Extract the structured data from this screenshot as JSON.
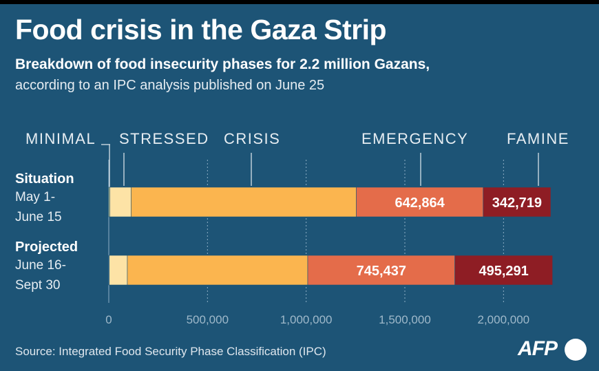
{
  "title": "Food crisis in the Gaza Strip",
  "subtitle_bold": "Breakdown of food insecurity phases for 2.2 million Gazans,",
  "subtitle_regular": "according to an IPC analysis published on June 25",
  "source": "Source: Integrated Food Security Phase Classification (IPC)",
  "logo_text": "AFP",
  "colors": {
    "background": "#1d5476",
    "minimal": "#e8d98a",
    "stressed": "#fde3a6",
    "crisis": "#fbb54f",
    "emergency": "#e46c4a",
    "famine": "#8e1d24"
  },
  "chart_data": {
    "type": "bar",
    "orientation": "horizontal",
    "stacked": true,
    "categories": [
      {
        "name": "Situation",
        "period_line1": "May 1-",
        "period_line2": "June 15"
      },
      {
        "name": "Projected",
        "period_line1": "June 16-",
        "period_line2": "Sept 30"
      }
    ],
    "series": [
      {
        "name": "MINIMAL",
        "values": [
          5000,
          2000
        ]
      },
      {
        "name": "STRESSED",
        "values": [
          108000,
          92000
        ]
      },
      {
        "name": "CRISIS",
        "values": [
          1141000,
          914000
        ]
      },
      {
        "name": "EMERGENCY",
        "values": [
          642864,
          745437
        ],
        "labels": [
          "642,864",
          "745,437"
        ]
      },
      {
        "name": "FAMINE",
        "values": [
          342719,
          495291
        ],
        "labels": [
          "342,719",
          "495,291"
        ]
      }
    ],
    "xlim": [
      0,
      2250000
    ],
    "xticks": [
      0,
      500000,
      1000000,
      1500000,
      2000000
    ],
    "xtick_labels": [
      "0",
      "500,000",
      "1,000,000",
      "1,500,000",
      "2,000,000"
    ],
    "grid": true,
    "legend": "top, labels connected to segments of the first bar"
  }
}
